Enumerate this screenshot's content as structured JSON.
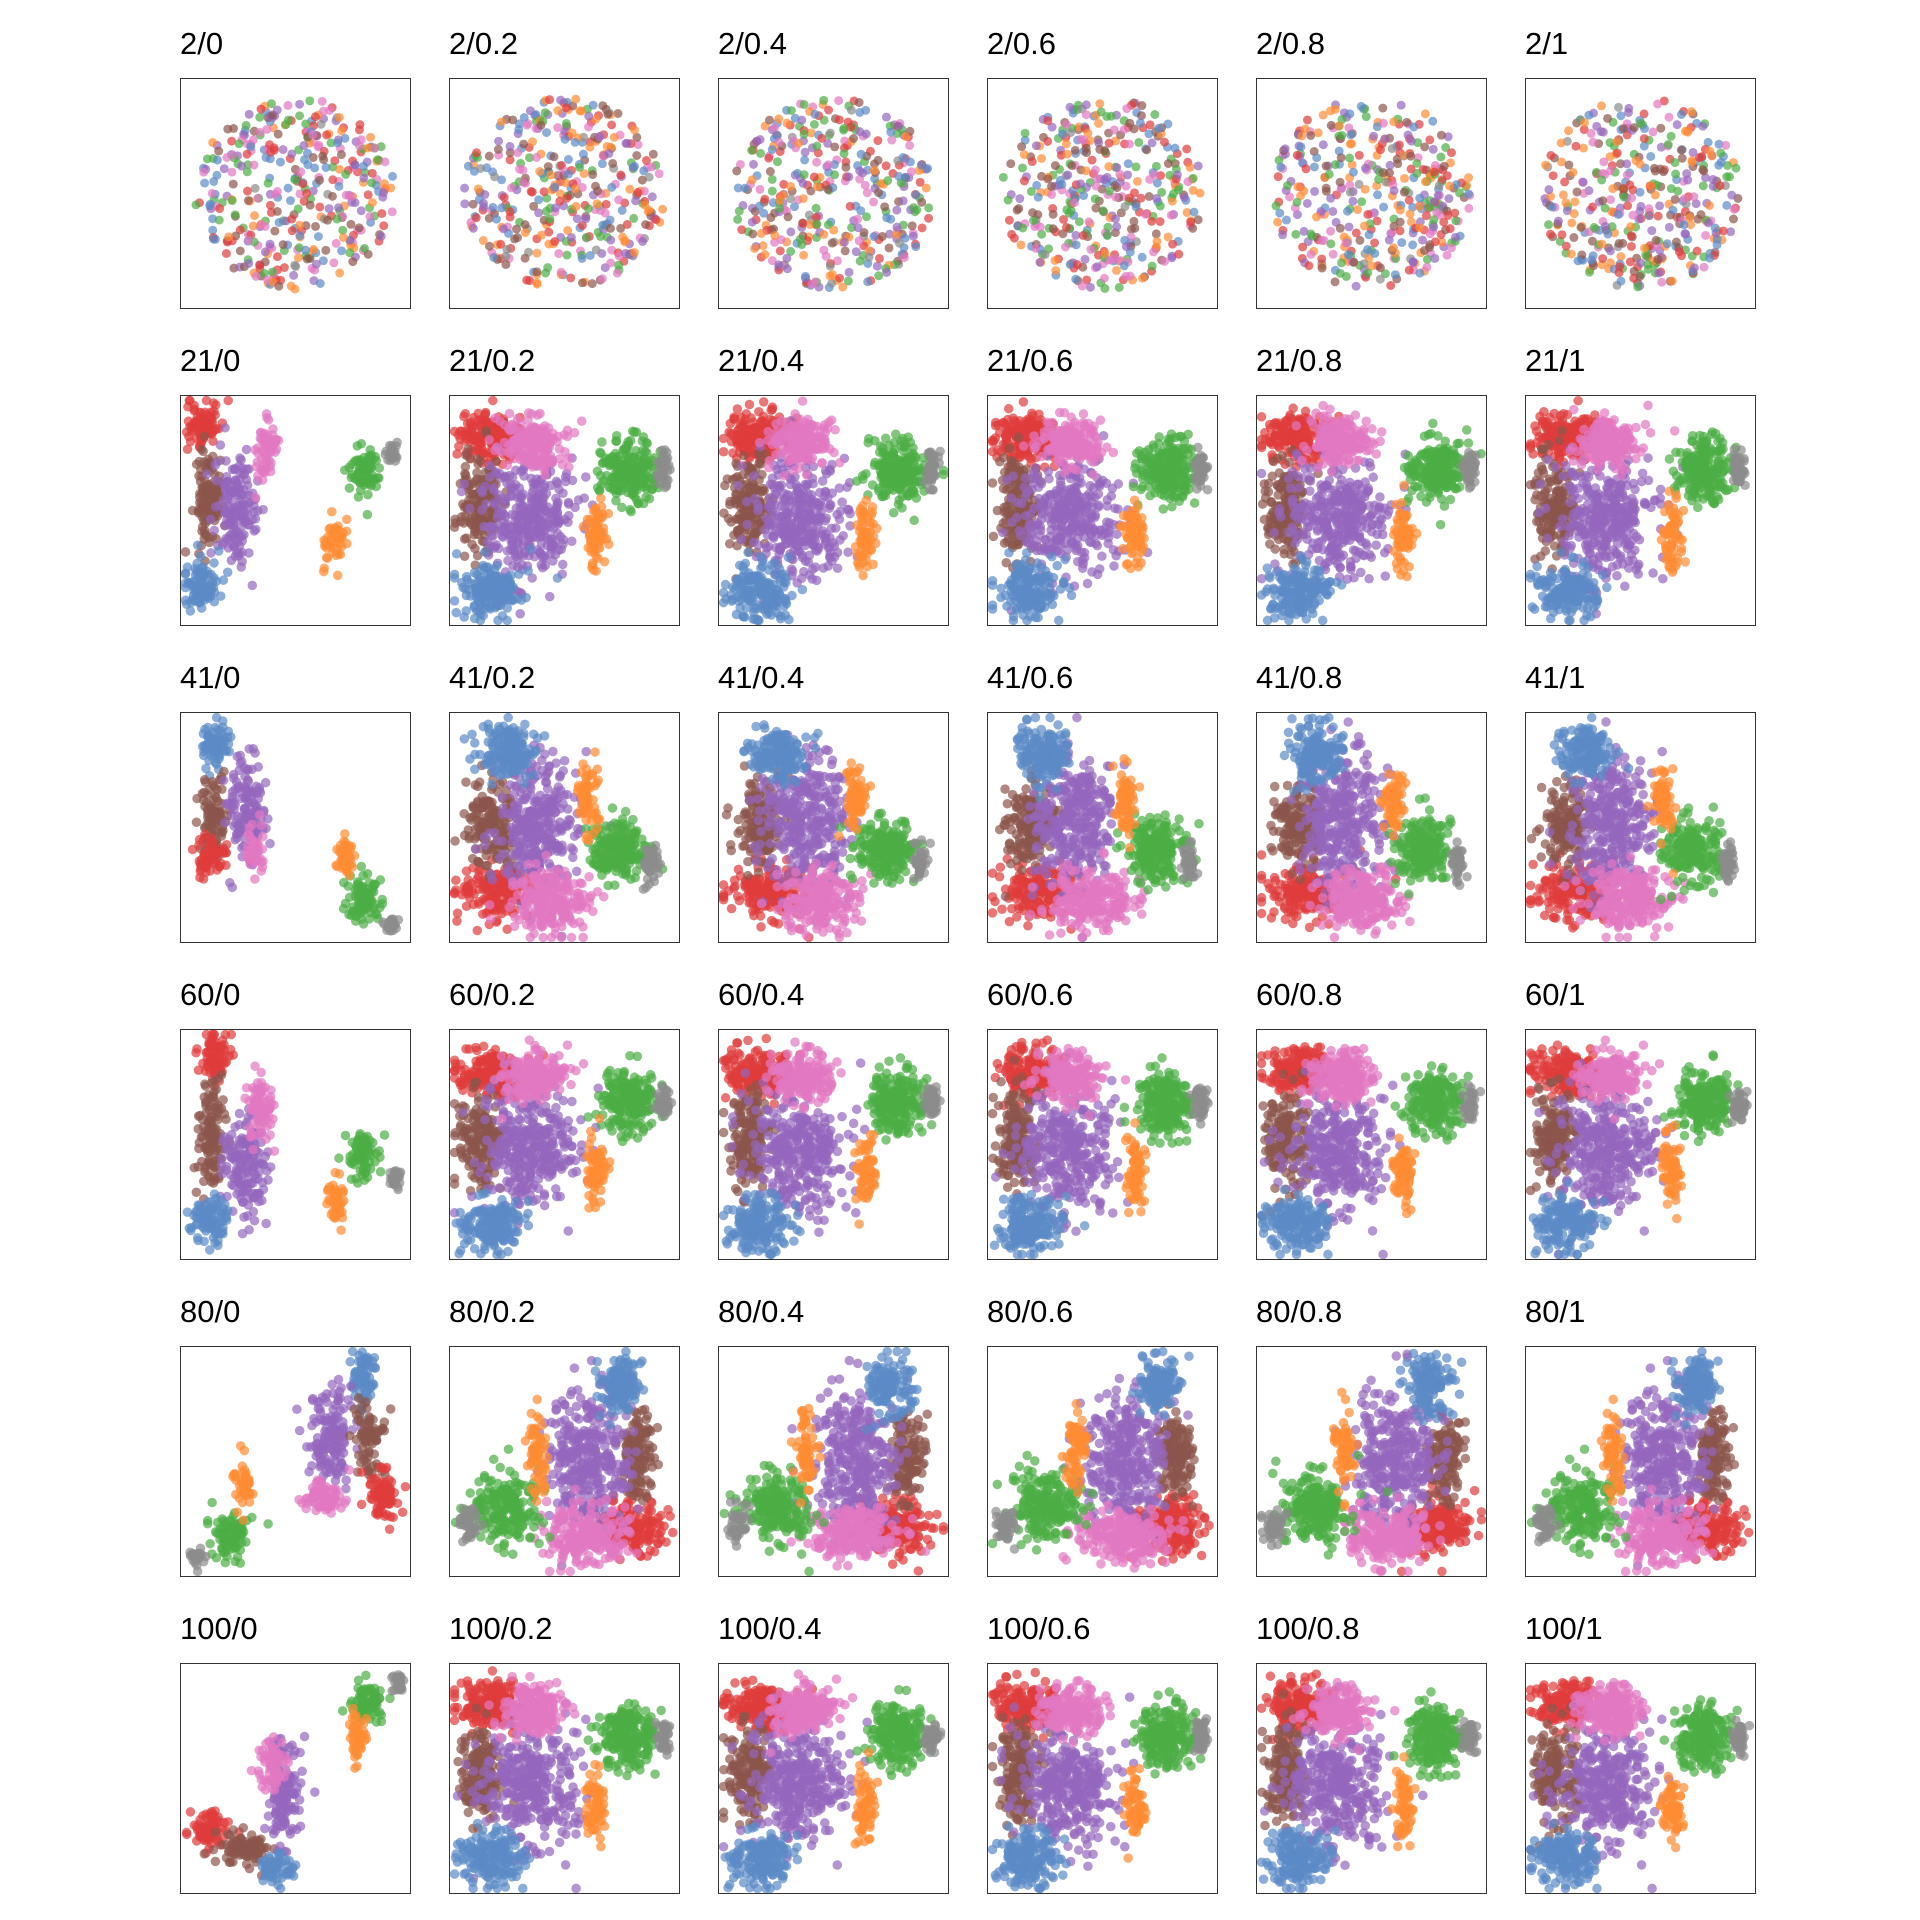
{
  "chart_data": {
    "type": "scatter",
    "layout": "small-multiples grid, 6 rows x 6 columns",
    "panel_titles": [
      [
        "2/0",
        "2/0.2",
        "2/0.4",
        "2/0.6",
        "2/0.8",
        "2/1"
      ],
      [
        "21/0",
        "21/0.2",
        "21/0.4",
        "21/0.6",
        "21/0.8",
        "21/1"
      ],
      [
        "41/0",
        "41/0.2",
        "41/0.4",
        "41/0.6",
        "41/0.8",
        "41/1"
      ],
      [
        "60/0",
        "60/0.2",
        "60/0.4",
        "60/0.6",
        "60/0.8",
        "60/1"
      ],
      [
        "80/0",
        "80/0.2",
        "80/0.4",
        "80/0.6",
        "80/0.8",
        "80/1"
      ],
      [
        "100/0",
        "100/0.2",
        "100/0.4",
        "100/0.6",
        "100/0.8",
        "100/1"
      ]
    ],
    "axes": "no ticks, no labels",
    "grid": false,
    "legend": "none",
    "point_opacity": 0.7,
    "group_colors": {
      "red": "#e03c3c",
      "brown": "#8c564b",
      "purple": "#9467bd",
      "pink": "#e377c2",
      "blue": "#5b8ac6",
      "orange": "#ff8c33",
      "green": "#4cae44",
      "gray": "#8c8c8c"
    }
  }
}
